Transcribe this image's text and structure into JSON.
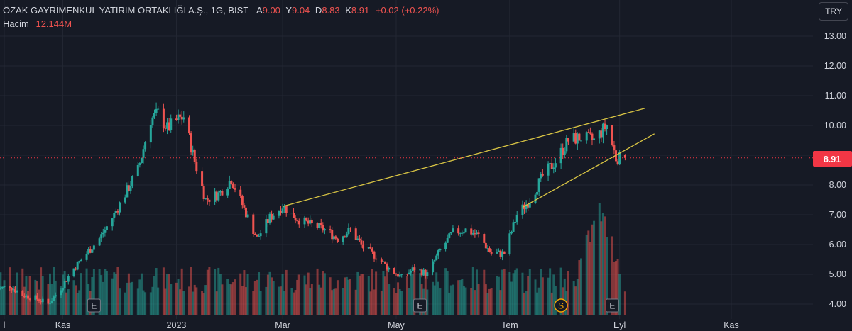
{
  "header": {
    "symbol_line": "ÖZAK GAYRİMENKUL YATIRIM ORTAKLIĞI A.Ş., 1G, BIST",
    "open_label": "A",
    "open_value": "9.00",
    "high_label": "Y",
    "high_value": "9.04",
    "low_label": "D",
    "low_value": "8.83",
    "close_label": "K",
    "close_value": "8.91",
    "change": "+0.02 (+0.22%)",
    "volume_label": "Hacim",
    "volume_value": "12.144M"
  },
  "currency_button": "TRY",
  "price_tag": "8.91",
  "event_markers": [
    {
      "label": "E",
      "date": "2022-11-18"
    },
    {
      "label": "E",
      "date": "2023-05-15"
    },
    {
      "label": "S",
      "date": "2023-07-31"
    },
    {
      "label": "E",
      "date": "2023-08-28"
    }
  ],
  "colors": {
    "up": "#26a69a",
    "down": "#ef5350",
    "trendline": "#d9c544",
    "background": "#161a25",
    "text": "#d1d4dc",
    "price_line": "#f23645"
  },
  "chart_data": {
    "type": "candlestick",
    "title": "ÖZAK GAYRİMENKUL YATIRIM ORTAKLIĞI A.Ş., 1G, BIST",
    "ylim": [
      3.5,
      13.5
    ],
    "y_ticks": [
      "4.00",
      "5.00",
      "6.00",
      "7.00",
      "8.00",
      "9.00",
      "10.00",
      "11.00",
      "12.00",
      "13.00"
    ],
    "x_ticks": [
      {
        "label": "l",
        "date": "2022-09-30"
      },
      {
        "label": "Kas",
        "date": "2022-11-01"
      },
      {
        "label": "2023",
        "date": "2023-01-02"
      },
      {
        "label": "Mar",
        "date": "2023-03-01"
      },
      {
        "label": "May",
        "date": "2023-05-02"
      },
      {
        "label": "Tem",
        "date": "2023-07-03"
      },
      {
        "label": "Eyl",
        "date": "2023-09-01"
      },
      {
        "label": "Kas",
        "date": "2023-11-01"
      }
    ],
    "keyframes": [
      [
        "2022-09-26",
        4.5
      ],
      [
        "2022-10-03",
        4.6
      ],
      [
        "2022-10-10",
        4.3
      ],
      [
        "2022-10-17",
        4.2
      ],
      [
        "2022-10-24",
        4.0
      ],
      [
        "2022-10-31",
        4.55
      ],
      [
        "2022-11-07",
        5.2
      ],
      [
        "2022-11-14",
        5.7
      ],
      [
        "2022-11-21",
        6.2
      ],
      [
        "2022-11-28",
        6.9
      ],
      [
        "2022-12-05",
        7.7
      ],
      [
        "2022-12-12",
        8.5
      ],
      [
        "2022-12-19",
        10.2
      ],
      [
        "2022-12-23",
        10.4
      ],
      [
        "2022-12-28",
        9.9
      ],
      [
        "2023-01-03",
        10.2
      ],
      [
        "2023-01-06",
        10.3
      ],
      [
        "2023-01-12",
        8.8
      ],
      [
        "2023-01-18",
        7.5
      ],
      [
        "2023-01-25",
        7.7
      ],
      [
        "2023-02-01",
        8.2
      ],
      [
        "2023-02-08",
        7.2
      ],
      [
        "2023-02-15",
        6.2
      ],
      [
        "2023-02-22",
        6.9
      ],
      [
        "2023-03-01",
        7.3
      ],
      [
        "2023-03-08",
        6.9
      ],
      [
        "2023-03-15",
        6.7
      ],
      [
        "2023-03-24",
        6.5
      ],
      [
        "2023-03-31",
        6.2
      ],
      [
        "2023-04-07",
        6.5
      ],
      [
        "2023-04-14",
        5.9
      ],
      [
        "2023-04-21",
        5.6
      ],
      [
        "2023-04-28",
        5.2
      ],
      [
        "2023-05-05",
        4.9
      ],
      [
        "2023-05-12",
        5.2
      ],
      [
        "2023-05-19",
        5.0
      ],
      [
        "2023-05-26",
        5.8
      ],
      [
        "2023-06-02",
        6.4
      ],
      [
        "2023-06-09",
        6.5
      ],
      [
        "2023-06-16",
        6.3
      ],
      [
        "2023-06-23",
        5.7
      ],
      [
        "2023-06-30",
        5.7
      ],
      [
        "2023-07-07",
        7.0
      ],
      [
        "2023-07-14",
        7.5
      ],
      [
        "2023-07-21",
        8.3
      ],
      [
        "2023-07-28",
        8.8
      ],
      [
        "2023-08-04",
        9.5
      ],
      [
        "2023-08-11",
        9.6
      ],
      [
        "2023-08-18",
        9.5
      ],
      [
        "2023-08-25",
        10.0
      ],
      [
        "2023-08-30",
        8.9
      ],
      [
        "2023-09-04",
        8.91
      ]
    ],
    "trendlines": [
      {
        "start": {
          "date": "2023-03-01",
          "price": 7.28
        },
        "end": {
          "date": "2023-09-15",
          "price": 10.58
        }
      },
      {
        "start": {
          "date": "2023-07-10",
          "price": 7.25
        },
        "end": {
          "date": "2023-09-20",
          "price": 9.72
        }
      }
    ]
  }
}
